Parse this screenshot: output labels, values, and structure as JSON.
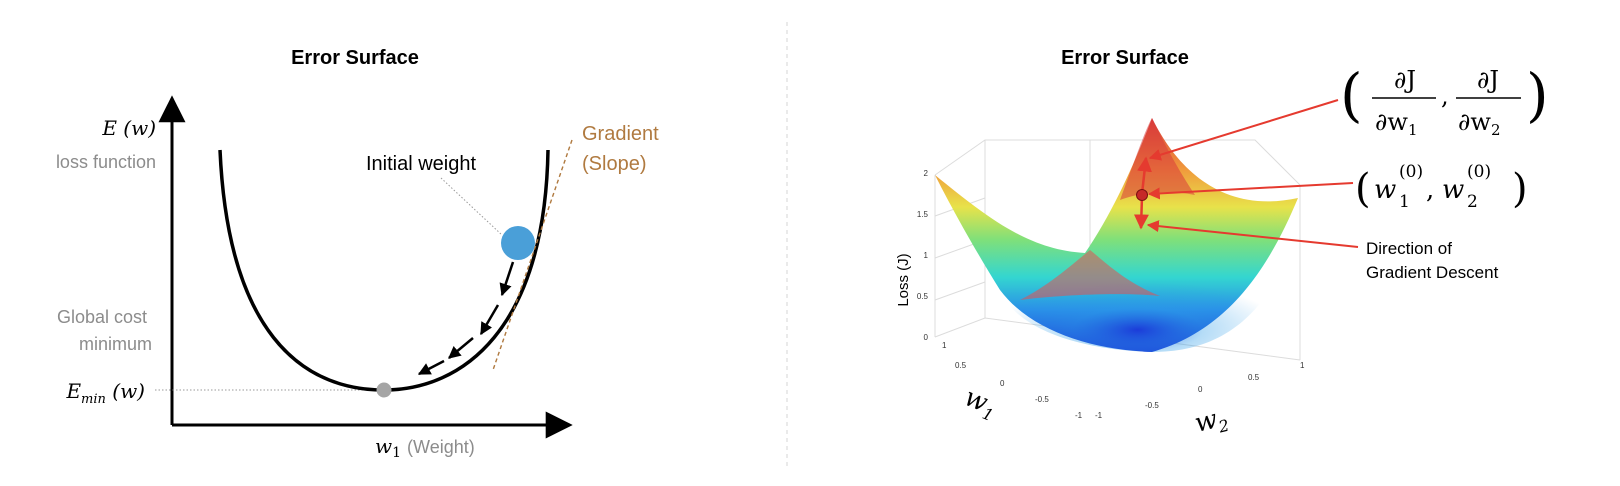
{
  "left": {
    "title": "Error Surface",
    "y_axis_symbol": "E (w)",
    "y_axis_label": "loss function",
    "min_label": "Global cost\nminimum",
    "emin_symbol": "E",
    "emin_sub": "min",
    "emin_arg": " (w)",
    "x_axis_symbol": "w",
    "x_axis_sub": "1",
    "x_axis_label": "(Weight)",
    "initial_weight_label": "Initial weight",
    "gradient_label": "Gradient\n(Slope)",
    "colors": {
      "ball": "#4a9fd8",
      "min_dot": "#a5a5a5",
      "gradient": "#b07a40",
      "label_gray": "#8c8c8c"
    }
  },
  "right": {
    "title": "Error Surface",
    "z_axis_label": "Loss (J)",
    "z_ticks": [
      "0",
      "0.5",
      "1",
      "1.5",
      "2"
    ],
    "w1_ticks": [
      "1",
      "0.5",
      "0",
      "-0.5",
      "-1"
    ],
    "w2_ticks": [
      "-1",
      "-0.5",
      "0",
      "0.5",
      "1"
    ],
    "w1_label": "w",
    "w1_sub": "1",
    "w2_label": "w",
    "w2_sub": "2",
    "gradient_formula": {
      "num": "∂J",
      "den1": "∂w",
      "den1_sub": "1",
      "den2": "∂w",
      "den2_sub": "2"
    },
    "point_formula": {
      "w": "w",
      "sup": "(0)",
      "sub1": "1",
      "sub2": "2"
    },
    "direction_label": "Direction of\nGradient Descent",
    "colors": {
      "arrow": "#e53a2f",
      "point": "#c62828"
    }
  }
}
